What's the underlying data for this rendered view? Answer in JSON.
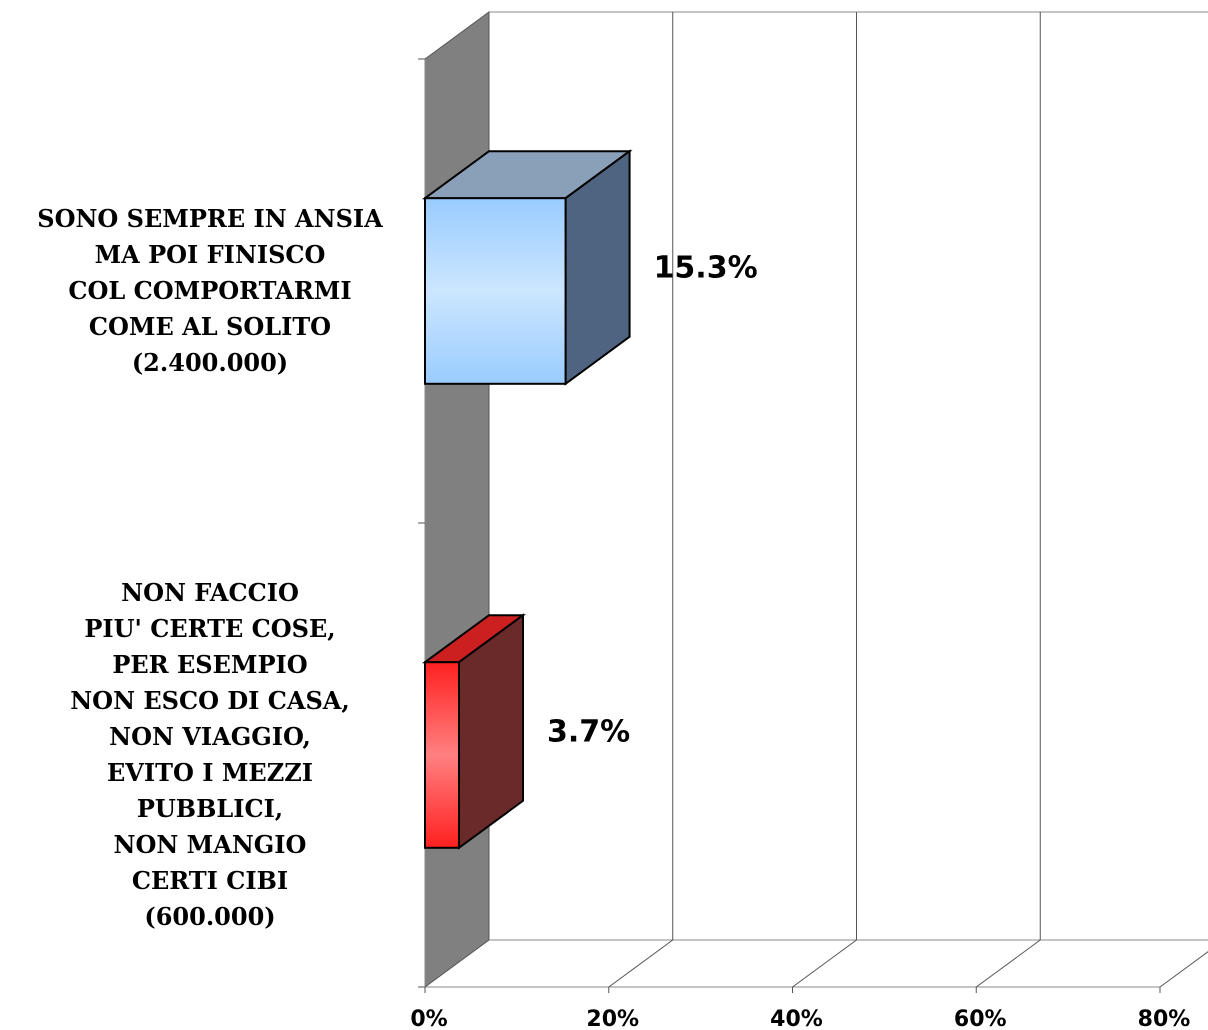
{
  "chart_data": {
    "type": "bar3d-horizontal",
    "categories": [
      "SONO SEMPRE IN ANSIA\nMA POI FINISCO\nCOL COMPORTARMI\nCOME AL SOLITO\n(2.400.000)",
      "NON FACCIO\nPIU' CERTE COSE,\nPER ESEMPIO\nNON ESCO DI CASA,\nNON VIAGGIO,\nEVITO I MEZZI\nPUBBLICI,\nNON MANGIO\nCERTI CIBI\n(600.000)"
    ],
    "values": [
      15.3,
      3.7
    ],
    "value_labels": [
      "15.3%",
      "3.7%"
    ],
    "colors": [
      "#99ccff",
      "#ff2020"
    ],
    "xlim": [
      0,
      80
    ],
    "xticks": [
      {
        "value": 0,
        "label": "0%"
      },
      {
        "value": 20,
        "label": "20%"
      },
      {
        "value": 40,
        "label": "40%"
      },
      {
        "value": 60,
        "label": "60%"
      },
      {
        "value": 80,
        "label": "80%"
      }
    ],
    "grid": true
  }
}
